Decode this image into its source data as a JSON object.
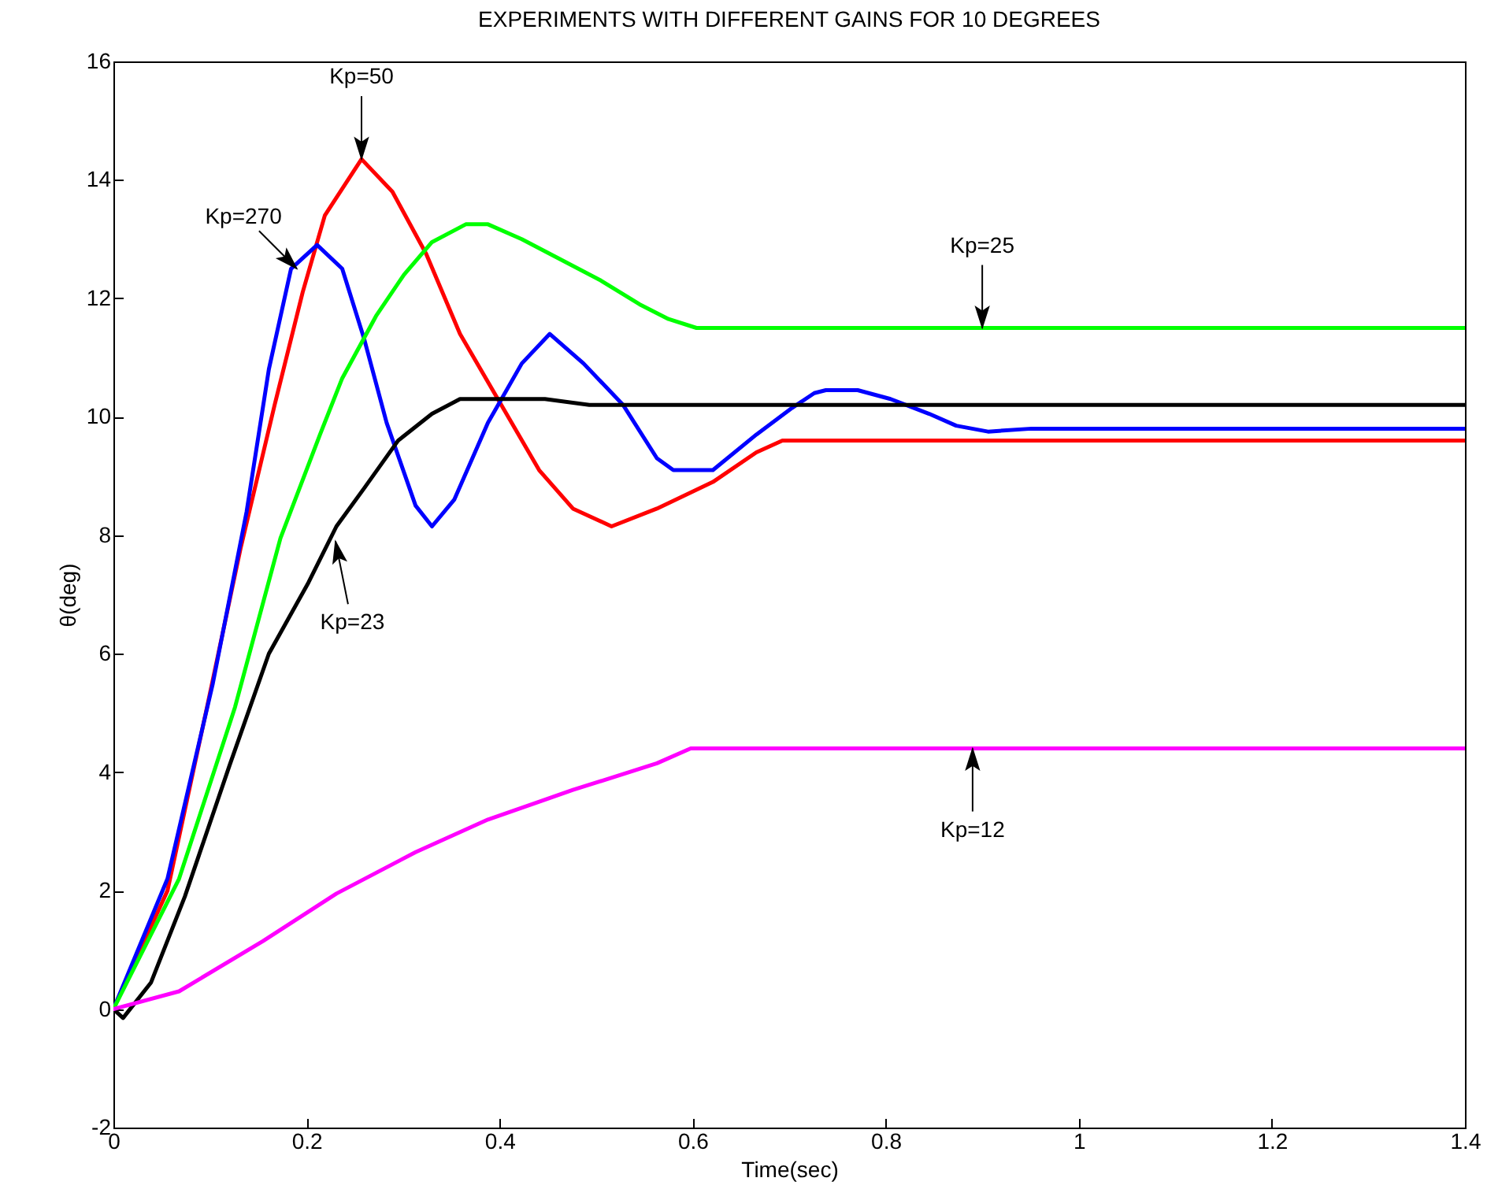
{
  "chart_data": {
    "type": "line",
    "title": "EXPERIMENTS WITH DIFFERENT GAINS FOR 10 DEGREES",
    "xlabel": "Time(sec)",
    "ylabel": "θ(deg)",
    "xlim": [
      0,
      1.4
    ],
    "ylim": [
      -2,
      16
    ],
    "xticks": [
      0,
      0.2,
      0.4,
      0.6,
      0.8,
      1,
      1.2,
      1.4
    ],
    "yticks": [
      -2,
      0,
      2,
      4,
      6,
      8,
      10,
      12,
      14,
      16
    ],
    "grid": false,
    "marker": "none",
    "line_style": "solid",
    "series": [
      {
        "color": "#ff0000",
        "x": [
          0,
          0.056,
          0.097,
          0.132,
          0.167,
          0.196,
          0.219,
          0.257,
          0.289,
          0.324,
          0.359,
          0.4,
          0.441,
          0.476,
          0.516,
          0.563,
          0.621,
          0.666,
          0.693,
          1.4
        ],
        "values": [
          0,
          2.0,
          5.1,
          7.8,
          10.2,
          12.1,
          13.4,
          14.35,
          13.8,
          12.75,
          11.4,
          10.25,
          9.1,
          8.45,
          8.15,
          8.45,
          8.9,
          9.4,
          9.6,
          9.6
        ]
      },
      {
        "color": "#0000ff",
        "x": [
          0,
          0.056,
          0.103,
          0.138,
          0.161,
          0.184,
          0.211,
          0.237,
          0.26,
          0.283,
          0.313,
          0.33,
          0.353,
          0.388,
          0.423,
          0.452,
          0.487,
          0.528,
          0.563,
          0.58,
          0.621,
          0.666,
          0.703,
          0.726,
          0.738,
          0.771,
          0.805,
          0.845,
          0.873,
          0.906,
          0.951,
          1.4
        ],
        "values": [
          0,
          2.2,
          5.5,
          8.4,
          10.8,
          12.5,
          12.9,
          12.5,
          11.3,
          9.9,
          8.5,
          8.15,
          8.6,
          9.9,
          10.9,
          11.4,
          10.9,
          10.2,
          9.3,
          9.1,
          9.1,
          9.7,
          10.15,
          10.4,
          10.45,
          10.45,
          10.3,
          10.05,
          9.85,
          9.75,
          9.8,
          9.8
        ]
      },
      {
        "color": "#00ff00",
        "x": [
          0,
          0.068,
          0.126,
          0.173,
          0.214,
          0.237,
          0.272,
          0.301,
          0.33,
          0.365,
          0.388,
          0.423,
          0.464,
          0.505,
          0.545,
          0.575,
          0.604,
          1.4
        ],
        "values": [
          0,
          2.2,
          5.1,
          7.95,
          9.7,
          10.65,
          11.7,
          12.4,
          12.95,
          13.25,
          13.25,
          13.0,
          12.65,
          12.3,
          11.9,
          11.65,
          11.5,
          11.5
        ]
      },
      {
        "color": "#000000",
        "x": [
          0,
          0.01,
          0.039,
          0.074,
          0.12,
          0.161,
          0.202,
          0.231,
          0.26,
          0.295,
          0.33,
          0.359,
          0.447,
          0.493,
          1.4
        ],
        "values": [
          0,
          -0.15,
          0.45,
          1.9,
          4.1,
          6.0,
          7.2,
          8.15,
          8.8,
          9.6,
          10.05,
          10.3,
          10.3,
          10.2,
          10.2
        ]
      },
      {
        "color": "#ff00ff",
        "x": [
          0,
          0.068,
          0.155,
          0.231,
          0.313,
          0.388,
          0.476,
          0.563,
          0.598,
          1.4
        ],
        "values": [
          0,
          0.3,
          1.15,
          1.95,
          2.65,
          3.2,
          3.7,
          4.15,
          4.4,
          4.4
        ]
      }
    ],
    "annotations": [
      {
        "text": "Kp=50",
        "x": 0.257,
        "y": 14.35
      },
      {
        "text": "Kp=270",
        "x": 0.19,
        "y": 12.5
      },
      {
        "text": "Kp=25",
        "x": 0.9,
        "y": 11.5
      },
      {
        "text": "Kp=23",
        "x": 0.23,
        "y": 7.9
      },
      {
        "text": "Kp=12",
        "x": 0.89,
        "y": 4.4
      }
    ]
  }
}
